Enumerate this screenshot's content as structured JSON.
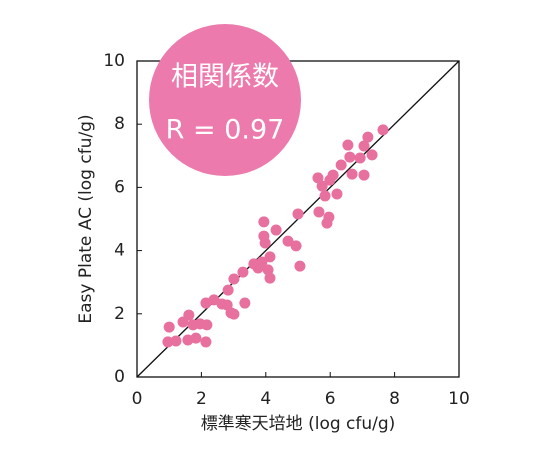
{
  "chart_data": {
    "type": "scatter",
    "xlabel": "標準寒天培地 (log cfu/g)",
    "ylabel": "Easy Plate AC (log cfu/g)",
    "annotations": [
      "相関係数",
      "R = 0.97"
    ],
    "color": "#e8709f",
    "annotation_color": "#ec7aac",
    "xlim": [
      0,
      10
    ],
    "ylim": [
      0,
      10
    ],
    "xticks": [
      0,
      2,
      4,
      6,
      8,
      10
    ],
    "yticks": [
      0,
      2,
      4,
      6,
      8,
      10
    ],
    "x": [
      1.0,
      0.96,
      1.21,
      1.43,
      1.61,
      1.74,
      1.58,
      1.83,
      1.96,
      2.17,
      2.14,
      2.14,
      2.39,
      2.64,
      2.8,
      2.92,
      3.01,
      2.83,
      3.01,
      3.35,
      3.29,
      3.63,
      3.76,
      3.88,
      4.07,
      4.13,
      4.13,
      3.98,
      3.94,
      3.94,
      4.32,
      4.69,
      4.94,
      5.06,
      5.0,
      5.65,
      5.62,
      5.75,
      5.84,
      5.96,
      5.9,
      5.99,
      6.09,
      6.21,
      6.34,
      6.55,
      6.61,
      6.68,
      6.93,
      7.05,
      7.05,
      7.17,
      7.3,
      7.64
    ],
    "values": [
      1.58,
      1.11,
      1.14,
      1.74,
      1.96,
      1.65,
      1.17,
      1.23,
      1.68,
      1.65,
      1.11,
      2.34,
      2.44,
      2.31,
      2.28,
      2.03,
      1.99,
      2.75,
      3.1,
      2.34,
      3.32,
      3.58,
      3.45,
      3.64,
      3.39,
      3.8,
      3.13,
      4.24,
      4.46,
      4.91,
      4.65,
      4.3,
      4.15,
      3.51,
      5.16,
      5.22,
      6.3,
      6.04,
      5.73,
      5.06,
      4.87,
      6.23,
      6.39,
      5.79,
      6.71,
      7.34,
      6.96,
      6.42,
      6.93,
      6.39,
      7.31,
      7.59,
      7.03,
      7.82
    ]
  }
}
